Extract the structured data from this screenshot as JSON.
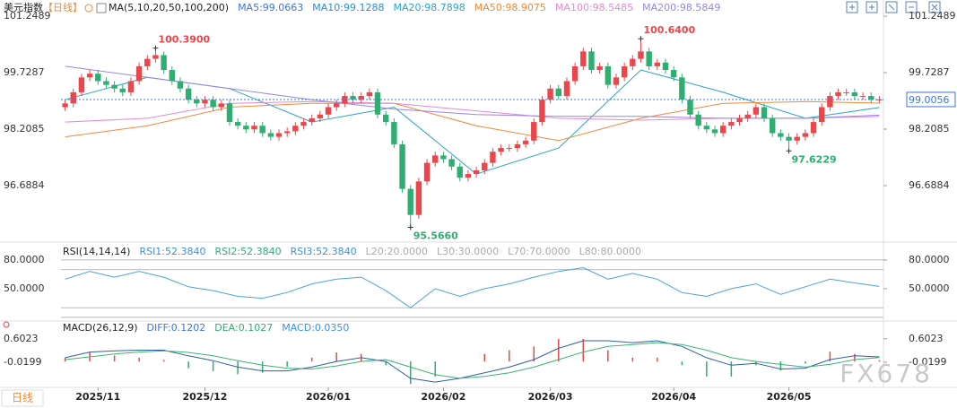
{
  "chart_data": [
    {
      "type": "candlestick",
      "title": "美元指数",
      "period": "【日线】",
      "ma_title": "MA(5,10,20,50,100,200)",
      "legend": [
        {
          "label": "MA5:99.0663",
          "color": "#3f74d9"
        },
        {
          "label": "MA10:99.1288",
          "color": "#2c8fd6"
        },
        {
          "label": "MA20:98.7898",
          "color": "#2aa3c9"
        },
        {
          "label": "MA50:98.9075",
          "color": "#ef8a3a"
        },
        {
          "label": "MA100:98.5485",
          "color": "#e38ad8"
        },
        {
          "label": "MA200:98.5849",
          "color": "#9b84e8"
        }
      ],
      "up_color": "#e8474b",
      "down_color": "#2fae72",
      "open": [
        98.8,
        98.9,
        99.2,
        99.6,
        99.7,
        99.5,
        99.4,
        99.3,
        99.2,
        99.5,
        99.9,
        100.1,
        100.2,
        99.8,
        99.5,
        99.3,
        99.0,
        98.9,
        99.0,
        98.8,
        98.9,
        98.4,
        98.3,
        98.2,
        98.3,
        98.1,
        98.0,
        98.1,
        98.15,
        98.3,
        98.4,
        98.5,
        98.6,
        98.8,
        98.9,
        99.1,
        99.0,
        99.1,
        99.2,
        98.6,
        98.4,
        97.8,
        96.6,
        95.9,
        96.8,
        97.3,
        97.5,
        97.4,
        97.2,
        96.9,
        97.0,
        97.1,
        97.3,
        97.6,
        97.7,
        97.7,
        97.8,
        97.9,
        98.4,
        99.0,
        99.3,
        99.1,
        99.5,
        99.9,
        100.3,
        99.8,
        99.9,
        99.4,
        99.6,
        99.9,
        100.1,
        100.3,
        99.9,
        100.0,
        99.8,
        99.6,
        99.0,
        98.6,
        98.3,
        98.2,
        98.1,
        98.3,
        98.4,
        98.5,
        98.6,
        98.8,
        98.5,
        98.1,
        98.0,
        97.9,
        98.0,
        98.1,
        98.4,
        98.8,
        99.1,
        99.2,
        99.2,
        99.1,
        99.1,
        99.0
      ],
      "high": [
        99.0,
        99.3,
        99.7,
        99.8,
        99.8,
        99.6,
        99.5,
        99.4,
        99.6,
        100.0,
        100.2,
        100.39,
        100.3,
        99.9,
        99.6,
        99.4,
        99.1,
        99.1,
        99.1,
        99.0,
        99.0,
        98.5,
        98.4,
        98.4,
        98.4,
        98.2,
        98.2,
        98.25,
        98.4,
        98.5,
        98.6,
        98.7,
        98.9,
        99.0,
        99.2,
        99.2,
        99.2,
        99.3,
        99.3,
        98.7,
        98.5,
        97.9,
        96.7,
        96.9,
        97.4,
        97.6,
        97.6,
        97.5,
        97.3,
        97.1,
        97.2,
        97.4,
        97.7,
        97.8,
        97.8,
        97.9,
        98.0,
        98.5,
        99.1,
        99.4,
        99.4,
        99.6,
        100.0,
        100.4,
        100.4,
        100.0,
        100.0,
        99.7,
        100.0,
        100.2,
        100.64,
        100.4,
        100.1,
        100.1,
        99.9,
        99.7,
        99.1,
        98.7,
        98.4,
        98.3,
        98.4,
        98.5,
        98.6,
        98.7,
        98.9,
        98.9,
        98.6,
        98.2,
        98.1,
        98.1,
        98.2,
        98.5,
        98.9,
        99.2,
        99.3,
        99.3,
        99.3,
        99.2,
        99.2,
        99.1
      ],
      "low": [
        98.7,
        98.8,
        99.1,
        99.5,
        99.4,
        99.3,
        99.2,
        99.1,
        99.1,
        99.4,
        99.8,
        100.0,
        99.7,
        99.4,
        99.2,
        98.9,
        98.8,
        98.8,
        98.7,
        98.7,
        98.3,
        98.2,
        98.1,
        98.1,
        98.0,
        97.9,
        97.9,
        98.0,
        98.05,
        98.2,
        98.3,
        98.4,
        98.5,
        98.7,
        98.8,
        98.9,
        98.9,
        99.0,
        98.5,
        98.3,
        97.7,
        96.5,
        95.566,
        95.8,
        96.7,
        97.2,
        97.3,
        97.1,
        96.8,
        96.8,
        96.9,
        97.0,
        97.2,
        97.5,
        97.6,
        97.6,
        97.7,
        97.8,
        98.3,
        98.9,
        99.0,
        99.0,
        99.4,
        99.8,
        99.7,
        99.7,
        99.3,
        99.3,
        99.5,
        99.8,
        100.0,
        99.8,
        99.8,
        99.7,
        99.5,
        98.9,
        98.5,
        98.2,
        98.1,
        98.0,
        98.0,
        98.2,
        98.3,
        98.4,
        98.5,
        98.4,
        98.0,
        97.9,
        97.6229,
        97.8,
        97.9,
        98.0,
        98.3,
        98.7,
        99.0,
        99.1,
        99.0,
        99.0,
        98.9,
        98.9
      ],
      "close": [
        98.9,
        99.2,
        99.6,
        99.7,
        99.5,
        99.4,
        99.3,
        99.2,
        99.5,
        99.9,
        100.1,
        100.2,
        99.8,
        99.5,
        99.3,
        99.0,
        98.9,
        99.0,
        98.8,
        98.9,
        98.4,
        98.3,
        98.2,
        98.3,
        98.1,
        98.0,
        98.1,
        98.15,
        98.3,
        98.4,
        98.5,
        98.6,
        98.8,
        98.9,
        99.1,
        99.0,
        99.1,
        99.2,
        98.6,
        98.4,
        97.8,
        96.6,
        95.9,
        96.8,
        97.3,
        97.5,
        97.4,
        97.2,
        96.9,
        97.0,
        97.1,
        97.3,
        97.6,
        97.7,
        97.7,
        97.8,
        97.9,
        98.4,
        99.0,
        99.3,
        99.1,
        99.5,
        99.9,
        100.3,
        99.8,
        99.9,
        99.4,
        99.6,
        99.9,
        100.1,
        100.3,
        99.9,
        100.0,
        99.8,
        99.6,
        99.0,
        98.6,
        98.3,
        98.2,
        98.1,
        98.3,
        98.4,
        98.5,
        98.6,
        98.8,
        98.5,
        98.1,
        98.0,
        97.9,
        98.0,
        98.1,
        98.4,
        98.8,
        99.1,
        99.2,
        99.2,
        99.1,
        99.1,
        99.0,
        99.0056
      ],
      "ma_x": [
        0,
        10,
        20,
        30,
        40,
        50,
        60,
        70,
        80,
        90,
        99
      ],
      "series": [
        {
          "color": "#2aa3c9",
          "values": [
            99.0,
            99.6,
            99.3,
            98.4,
            98.8,
            97.0,
            97.7,
            99.8,
            99.2,
            98.5,
            98.7898
          ]
        },
        {
          "color": "#ef8a3a",
          "values": [
            98.0,
            98.3,
            98.8,
            98.9,
            98.9,
            98.3,
            97.9,
            98.5,
            98.9,
            98.95,
            98.9075
          ]
        },
        {
          "color": "#e38ad8",
          "values": [
            98.4,
            98.5,
            98.9,
            98.95,
            98.9,
            98.7,
            98.5,
            98.45,
            98.5,
            98.5,
            98.5485
          ]
        },
        {
          "color": "#9b84e8",
          "values": [
            99.9,
            99.6,
            99.3,
            99.0,
            98.75,
            98.6,
            98.55,
            98.55,
            98.5,
            98.5,
            98.5849
          ]
        }
      ],
      "annotations": [
        {
          "label": "100.3900",
          "value": 100.39
        },
        {
          "label": "95.5660",
          "value": 95.566
        },
        {
          "label": "100.6400",
          "value": 100.64
        },
        {
          "label": "97.6229",
          "value": 97.6229
        }
      ],
      "ylim": [
        95.2645,
        101.2489
      ],
      "yticks": [
        96.6884,
        98.2085,
        99.7287,
        101.2489
      ],
      "xticks": [
        {
          "value": 4,
          "label": "2025/11"
        },
        {
          "value": 17,
          "label": "2025/12"
        },
        {
          "value": 32,
          "label": "2026/01"
        },
        {
          "value": 46,
          "label": "2026/02"
        },
        {
          "value": 59,
          "label": "2026/03"
        },
        {
          "value": 74,
          "label": "2026/04"
        },
        {
          "value": 88,
          "label": "2026/05"
        }
      ]
    },
    {
      "type": "line",
      "title": "RSI(14,14,14)",
      "legend": [
        {
          "label": "RSI1:52.3840",
          "color": "#3f8fe0"
        },
        {
          "label": "RSI2:52.3840",
          "color": "#2fae72"
        },
        {
          "label": "RSI3:52.3840",
          "color": "#3f8fe0"
        },
        {
          "label": "L20:20.0000",
          "color": "#aaaaaa"
        },
        {
          "label": "L30:30.0000",
          "color": "#aaaaaa"
        },
        {
          "label": "L70:70.0000",
          "color": "#aaaaaa"
        },
        {
          "label": "L80:80.0000",
          "color": "#aaaaaa"
        }
      ],
      "levels": [
        20,
        30,
        70,
        80
      ],
      "x": [
        0,
        3,
        6,
        9,
        12,
        15,
        18,
        21,
        24,
        27,
        30,
        33,
        36,
        39,
        42,
        45,
        48,
        51,
        54,
        57,
        60,
        63,
        66,
        69,
        72,
        75,
        78,
        81,
        84,
        87,
        90,
        93,
        96,
        99
      ],
      "series": [
        {
          "color": "#4aa3df",
          "values": [
            60,
            68,
            62,
            68,
            62,
            52,
            48,
            42,
            40,
            46,
            55,
            60,
            62,
            48,
            30,
            50,
            42,
            50,
            55,
            62,
            68,
            72,
            60,
            66,
            60,
            46,
            42,
            50,
            55,
            44,
            52,
            60,
            56,
            52.384
          ]
        }
      ],
      "ylim": [
        19,
        94
      ],
      "yticks": [
        {
          "value": 80,
          "label": "80.0000"
        },
        {
          "value": 50,
          "label": "50.0000"
        }
      ]
    },
    {
      "type": "macd",
      "title": "MACD(26,12,9)",
      "legend": [
        {
          "label": "DIFF:0.1202",
          "color": "#3f74d9"
        },
        {
          "label": "DEA:0.1027",
          "color": "#2fae72"
        },
        {
          "label": "MACD:0.0350",
          "color": "#3f8fe0"
        }
      ],
      "x": [
        0,
        3,
        6,
        9,
        12,
        15,
        18,
        21,
        24,
        27,
        30,
        33,
        36,
        39,
        42,
        45,
        48,
        51,
        54,
        57,
        60,
        63,
        66,
        69,
        72,
        75,
        78,
        81,
        84,
        87,
        90,
        93,
        96,
        99
      ],
      "series": [
        {
          "color": "#2e5fa8",
          "values": [
            0.1,
            0.25,
            0.28,
            0.3,
            0.3,
            0.15,
            0.02,
            -0.15,
            -0.25,
            -0.25,
            -0.15,
            0.0,
            0.1,
            0.0,
            -0.45,
            -0.55,
            -0.45,
            -0.3,
            -0.15,
            0.05,
            0.35,
            0.55,
            0.55,
            0.5,
            0.55,
            0.4,
            0.1,
            -0.1,
            -0.05,
            -0.2,
            -0.18,
            0.05,
            0.15,
            0.1202
          ]
        },
        {
          "color": "#3cb371",
          "values": [
            0.05,
            0.12,
            0.2,
            0.25,
            0.28,
            0.24,
            0.15,
            0.02,
            -0.1,
            -0.18,
            -0.2,
            -0.12,
            0.0,
            0.05,
            -0.15,
            -0.35,
            -0.45,
            -0.4,
            -0.3,
            -0.15,
            0.05,
            0.25,
            0.4,
            0.45,
            0.5,
            0.45,
            0.3,
            0.1,
            0.0,
            -0.08,
            -0.15,
            -0.08,
            0.05,
            0.1027
          ]
        }
      ],
      "histogram": [
        0.1,
        0.26,
        0.16,
        0.1,
        0.04,
        -0.18,
        -0.26,
        -0.34,
        -0.3,
        -0.14,
        0.1,
        0.24,
        0.2,
        -0.1,
        -0.6,
        -0.4,
        0.0,
        0.2,
        0.3,
        0.4,
        0.6,
        0.6,
        0.3,
        0.1,
        0.1,
        -0.1,
        -0.4,
        -0.4,
        -0.1,
        -0.24,
        -0.06,
        0.26,
        0.2,
        0.035
      ],
      "ylim": [
        -0.69,
        0.98
      ],
      "yticks": [
        {
          "value": 0.6023,
          "label": "0.6023"
        },
        {
          "value": -0.0199,
          "label": "-0.0199"
        }
      ]
    }
  ],
  "period_button": "日线",
  "watermark": "FX678"
}
